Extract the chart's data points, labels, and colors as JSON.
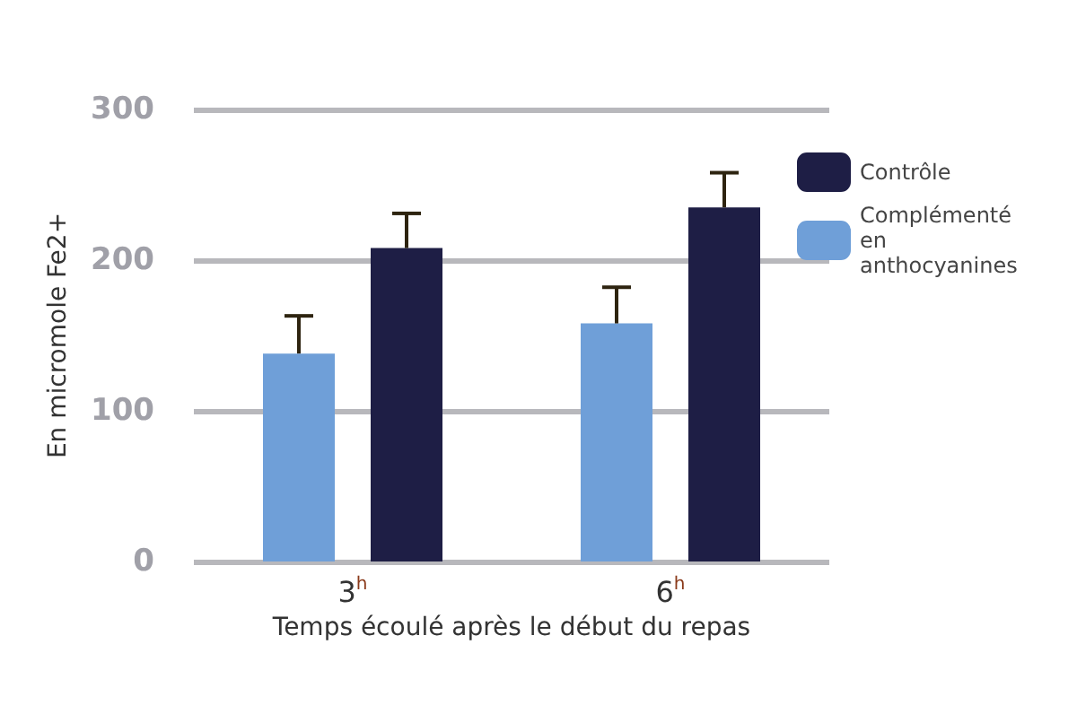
{
  "chart_data": {
    "type": "bar",
    "xlabel": "Temps écoulé après le début du repas",
    "ylabel": "En micromole Fe2+",
    "categories": [
      "3$^{h}$",
      "6$^{h}$"
    ],
    "series": [
      {
        "name": "Complémenté en anthocyanines",
        "color": "#6f9fd8",
        "values": [
          138,
          158
        ],
        "errors": [
          [
            138,
            163
          ],
          [
            158,
            182
          ]
        ]
      },
      {
        "name": "Contrôle",
        "color": "#1e1e45",
        "values": [
          208,
          235
        ],
        "errors": [
          [
            208,
            231
          ],
          [
            235,
            258
          ]
        ]
      }
    ],
    "ylim": [
      0,
      300
    ],
    "yticks": [
      0,
      100,
      200,
      300
    ],
    "grid": "y",
    "legend": "top right"
  }
}
